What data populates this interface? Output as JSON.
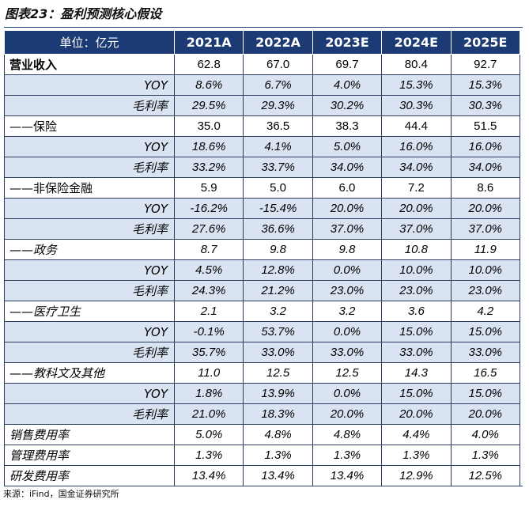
{
  "title": "图表23：盈利预测核心假设",
  "table": {
    "header": [
      "单位：亿元",
      "2021A",
      "2022A",
      "2023E",
      "2024E",
      "2025E"
    ],
    "rows": [
      {
        "label": "营业收入",
        "values": [
          "62.8",
          "67.0",
          "69.7",
          "80.4",
          "92.7"
        ],
        "align": "left",
        "italic": false,
        "bold": true,
        "shade": false
      },
      {
        "label": "YOY",
        "values": [
          "8.6%",
          "6.7%",
          "4.0%",
          "15.3%",
          "15.3%"
        ],
        "align": "right",
        "italic": true,
        "bold": false,
        "shade": true
      },
      {
        "label": "毛利率",
        "values": [
          "29.5%",
          "29.3%",
          "30.2%",
          "30.3%",
          "30.3%"
        ],
        "align": "right",
        "italic": true,
        "bold": false,
        "shade": true
      },
      {
        "label": "——保险",
        "values": [
          "35.0",
          "36.5",
          "38.3",
          "44.4",
          "51.5"
        ],
        "align": "left",
        "italic": false,
        "bold": false,
        "shade": false
      },
      {
        "label": "YOY",
        "values": [
          "18.6%",
          "4.1%",
          "5.0%",
          "16.0%",
          "16.0%"
        ],
        "align": "right",
        "italic": true,
        "bold": false,
        "shade": true
      },
      {
        "label": "毛利率",
        "values": [
          "33.2%",
          "33.7%",
          "34.0%",
          "34.0%",
          "34.0%"
        ],
        "align": "right",
        "italic": true,
        "bold": false,
        "shade": true
      },
      {
        "label": "——非保险金融",
        "values": [
          "5.9",
          "5.0",
          "6.0",
          "7.2",
          "8.6"
        ],
        "align": "left",
        "italic": false,
        "bold": false,
        "shade": false
      },
      {
        "label": "YOY",
        "values": [
          "-16.2%",
          "-15.4%",
          "20.0%",
          "20.0%",
          "20.0%"
        ],
        "align": "right",
        "italic": true,
        "bold": false,
        "shade": true
      },
      {
        "label": "毛利率",
        "values": [
          "27.6%",
          "36.6%",
          "37.0%",
          "37.0%",
          "37.0%"
        ],
        "align": "right",
        "italic": true,
        "bold": false,
        "shade": true
      },
      {
        "label": "——政务",
        "values": [
          "8.7",
          "9.8",
          "9.8",
          "10.8",
          "11.9"
        ],
        "align": "left",
        "italic": true,
        "bold": false,
        "shade": false
      },
      {
        "label": "YOY",
        "values": [
          "4.5%",
          "12.8%",
          "0.0%",
          "10.0%",
          "10.0%"
        ],
        "align": "right",
        "italic": true,
        "bold": false,
        "shade": true
      },
      {
        "label": "毛利率",
        "values": [
          "24.3%",
          "21.2%",
          "23.0%",
          "23.0%",
          "23.0%"
        ],
        "align": "right",
        "italic": true,
        "bold": false,
        "shade": true
      },
      {
        "label": "——医疗卫生",
        "values": [
          "2.1",
          "3.2",
          "3.2",
          "3.6",
          "4.2"
        ],
        "align": "left",
        "italic": true,
        "bold": false,
        "shade": false
      },
      {
        "label": "YOY",
        "values": [
          "-0.1%",
          "53.7%",
          "0.0%",
          "15.0%",
          "15.0%"
        ],
        "align": "right",
        "italic": true,
        "bold": false,
        "shade": true
      },
      {
        "label": "毛利率",
        "values": [
          "35.7%",
          "33.0%",
          "33.0%",
          "33.0%",
          "33.0%"
        ],
        "align": "right",
        "italic": true,
        "bold": false,
        "shade": true
      },
      {
        "label": "——教科文及其他",
        "values": [
          "11.0",
          "12.5",
          "12.5",
          "14.3",
          "16.5"
        ],
        "align": "left",
        "italic": true,
        "bold": false,
        "shade": false
      },
      {
        "label": "YOY",
        "values": [
          "1.8%",
          "13.9%",
          "0.0%",
          "15.0%",
          "15.0%"
        ],
        "align": "right",
        "italic": true,
        "bold": false,
        "shade": true
      },
      {
        "label": "毛利率",
        "values": [
          "21.0%",
          "18.3%",
          "20.0%",
          "20.0%",
          "20.0%"
        ],
        "align": "right",
        "italic": true,
        "bold": false,
        "shade": true
      },
      {
        "label": "销售费用率",
        "values": [
          "5.0%",
          "4.8%",
          "4.8%",
          "4.4%",
          "4.0%"
        ],
        "align": "left",
        "italic": true,
        "bold": false,
        "shade": false
      },
      {
        "label": "管理费用率",
        "values": [
          "1.3%",
          "1.3%",
          "1.3%",
          "1.3%",
          "1.3%"
        ],
        "align": "left",
        "italic": true,
        "bold": false,
        "shade": false
      },
      {
        "label": "研发费用率",
        "values": [
          "13.4%",
          "13.4%",
          "13.4%",
          "12.9%",
          "12.5%"
        ],
        "align": "left",
        "italic": true,
        "bold": false,
        "shade": false
      }
    ]
  },
  "source": "来源：iFind，国金证券研究所"
}
